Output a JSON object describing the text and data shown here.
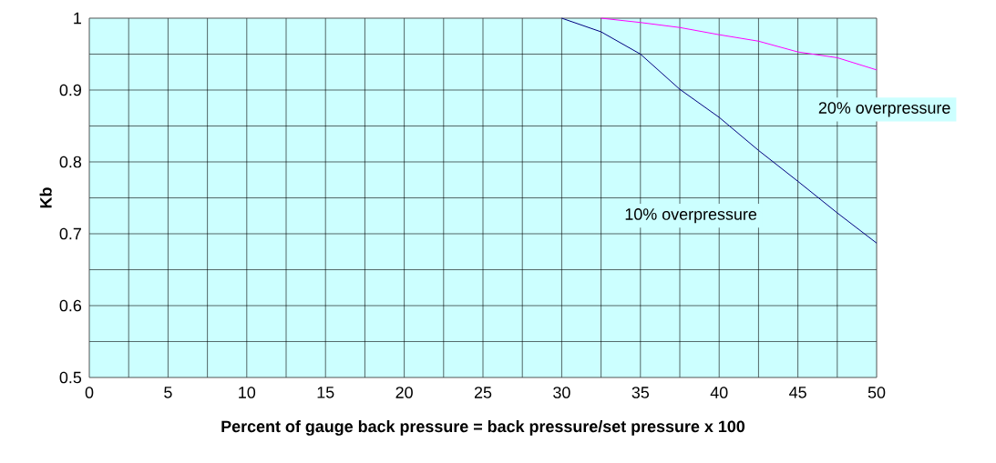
{
  "chart_data": {
    "type": "line",
    "xlabel": "Percent of gauge back pressure = back pressure/set pressure x 100",
    "ylabel": "Kb",
    "xlim": [
      0,
      50
    ],
    "ylim": [
      0.5,
      1
    ],
    "xticks": [
      0,
      5,
      10,
      15,
      20,
      25,
      30,
      35,
      40,
      45,
      50
    ],
    "yticks": [
      0.5,
      0.6,
      0.7,
      0.8,
      0.9,
      1
    ],
    "grid": true,
    "legend": false,
    "marker": "none",
    "line_style": "solid",
    "annotations": [
      "10% overpressure",
      "20% overpressure"
    ],
    "series": [
      {
        "color": "#000080",
        "x": [
          30,
          32.5,
          35,
          37.5,
          40,
          42.5,
          45,
          47.5,
          50
        ],
        "values": [
          1.0,
          0.981,
          0.95,
          0.901,
          0.862,
          0.816,
          0.773,
          0.729,
          0.687
        ]
      },
      {
        "color": "#ff00ff",
        "x": [
          32.5,
          35,
          37.5,
          40,
          42.5,
          45,
          47.5,
          50
        ],
        "values": [
          1.0,
          0.994,
          0.987,
          0.977,
          0.968,
          0.953,
          0.945,
          0.928
        ]
      }
    ]
  }
}
